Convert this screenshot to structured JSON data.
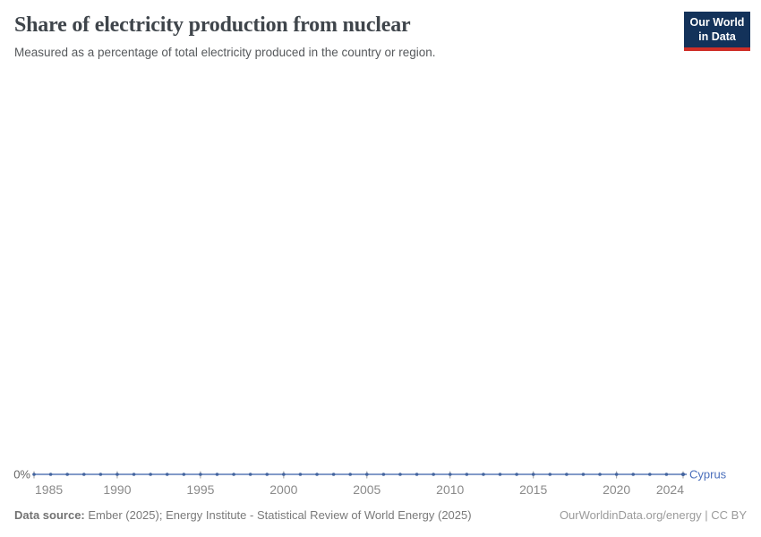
{
  "logo": {
    "line1": "Our World",
    "line2": "in Data",
    "bg_color": "#13325a",
    "bar_color": "#cf2e27"
  },
  "chart_data": {
    "type": "line",
    "title": "Share of electricity production from nuclear",
    "subtitle": "Measured as a percentage of total electricity produced in the country or region.",
    "xlabel": "",
    "ylabel": "",
    "xlim": [
      1985,
      2024
    ],
    "ylim": [
      0,
      0
    ],
    "grid": false,
    "legend_position": "end-of-line",
    "x_ticks": [
      1985,
      1990,
      1995,
      2000,
      2005,
      2010,
      2015,
      2020,
      2024
    ],
    "y_ticks": [
      {
        "value": 0,
        "label": "0%"
      }
    ],
    "x": [
      1985,
      1986,
      1987,
      1988,
      1989,
      1990,
      1991,
      1992,
      1993,
      1994,
      1995,
      1996,
      1997,
      1998,
      1999,
      2000,
      2001,
      2002,
      2003,
      2004,
      2005,
      2006,
      2007,
      2008,
      2009,
      2010,
      2011,
      2012,
      2013,
      2014,
      2015,
      2016,
      2017,
      2018,
      2019,
      2020,
      2021,
      2022,
      2023,
      2024
    ],
    "series": [
      {
        "name": "Cyprus",
        "values": [
          0,
          0,
          0,
          0,
          0,
          0,
          0,
          0,
          0,
          0,
          0,
          0,
          0,
          0,
          0,
          0,
          0,
          0,
          0,
          0,
          0,
          0,
          0,
          0,
          0,
          0,
          0,
          0,
          0,
          0,
          0,
          0,
          0,
          0,
          0,
          0,
          0,
          0,
          0,
          0
        ],
        "line_color": "#5878b5",
        "marker_color": "#44659f",
        "label_color": "#4a6ebb"
      }
    ],
    "axis": {
      "tick_color": "#9f9f9f",
      "tick_label_color": "#8a8a8a",
      "y_label_color": "#666666"
    }
  },
  "footer": {
    "source_label": "Data source:",
    "source_text": " Ember (2025); Energy Institute - Statistical Review of World Energy (2025)",
    "right_text": "OurWorldinData.org/energy | CC BY"
  }
}
